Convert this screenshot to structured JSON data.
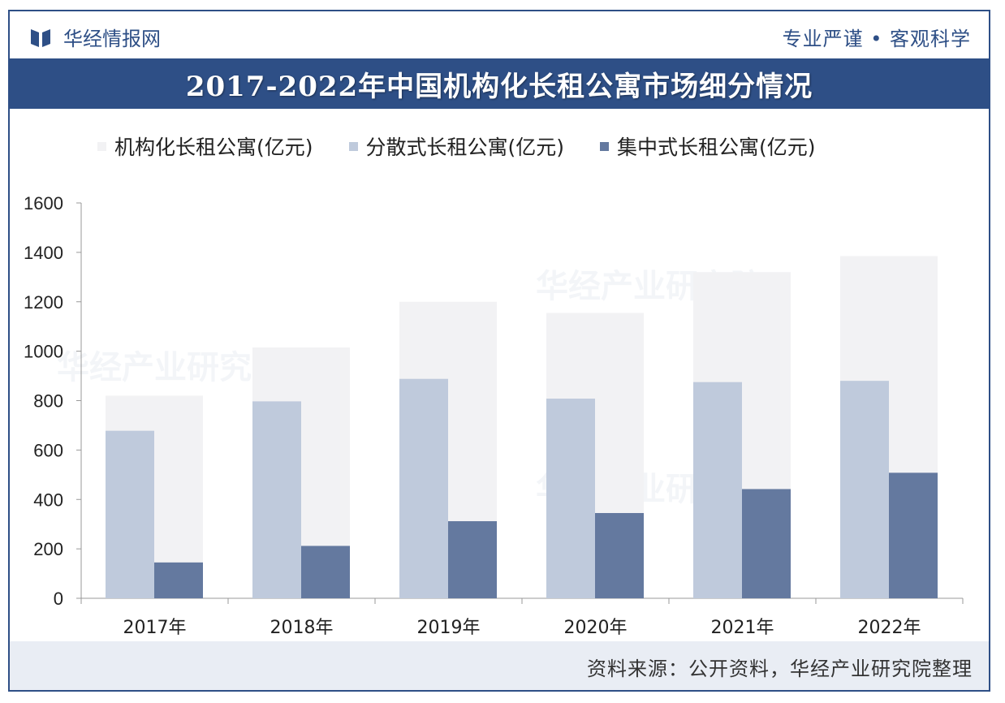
{
  "header": {
    "brand": "华经情报网",
    "slogan": "专业严谨 • 客观科学"
  },
  "footer": {
    "source": "资料来源：公开资料，华经产业研究院整理"
  },
  "watermark": "华经产业研究院",
  "colors": {
    "total": "#f2f2f4",
    "distributed": "#bfcadc",
    "centralized": "#64799f",
    "accent": "#2e4f86"
  },
  "chart_data": {
    "type": "bar",
    "title": "2017-2022年中国机构化长租公寓市场细分情况",
    "categories": [
      "2017年",
      "2018年",
      "2019年",
      "2020年",
      "2021年",
      "2022年"
    ],
    "series": [
      {
        "name": "机构化长租公寓(亿元)",
        "values": [
          820,
          1015,
          1200,
          1155,
          1320,
          1385
        ]
      },
      {
        "name": "分散式长租公寓(亿元)",
        "values": [
          678,
          797,
          888,
          808,
          875,
          880
        ]
      },
      {
        "name": "集中式长租公寓(亿元)",
        "values": [
          145,
          212,
          312,
          345,
          442,
          508
        ]
      }
    ],
    "ylim": [
      0,
      1600
    ],
    "yticks": [
      0,
      200,
      400,
      600,
      800,
      1000,
      1200,
      1400,
      1600
    ],
    "legend": "top",
    "grid": false
  }
}
